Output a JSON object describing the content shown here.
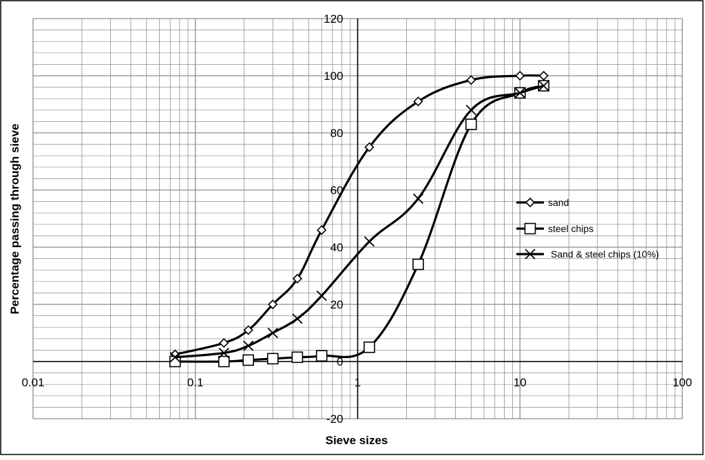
{
  "chart_data": {
    "type": "scatter",
    "title": "",
    "xlabel": "Sieve sizes",
    "ylabel": "Percentage passing through sieve",
    "x_scale": "log",
    "xlim": [
      0.01,
      100
    ],
    "ylim": [
      -20,
      120
    ],
    "y_major_step": 20,
    "grid": true,
    "legend_position": "right",
    "x_tick_labels": [
      "0.01",
      "0.1",
      "1",
      "10",
      "100"
    ],
    "y_tick_labels": [
      "-20",
      "0",
      "20",
      "40",
      "60",
      "80",
      "100",
      "120"
    ],
    "series": [
      {
        "name": "sand",
        "marker": "diamond",
        "x": [
          0.075,
          0.15,
          0.212,
          0.3,
          0.425,
          0.6,
          1.18,
          2.36,
          5.0,
          10.0,
          14.0
        ],
        "y": [
          2.5,
          6.5,
          11,
          20,
          29,
          46,
          75,
          91,
          98.5,
          100,
          100
        ]
      },
      {
        "name": "steel chips",
        "marker": "square",
        "x": [
          0.075,
          0.15,
          0.212,
          0.3,
          0.425,
          0.6,
          1.18,
          2.36,
          5.0,
          10.0,
          14.0
        ],
        "y": [
          0,
          0,
          0.5,
          1,
          1.5,
          2,
          5,
          34,
          83,
          94,
          96.5
        ]
      },
      {
        "name": "Sand & steel chips (10%)",
        "marker": "x",
        "x": [
          0.075,
          0.15,
          0.212,
          0.3,
          0.425,
          0.6,
          1.18,
          2.36,
          5.0,
          10.0,
          14.0
        ],
        "y": [
          1.5,
          3,
          5.5,
          10,
          15,
          23,
          42,
          57,
          88,
          94,
          96.5
        ]
      }
    ]
  }
}
